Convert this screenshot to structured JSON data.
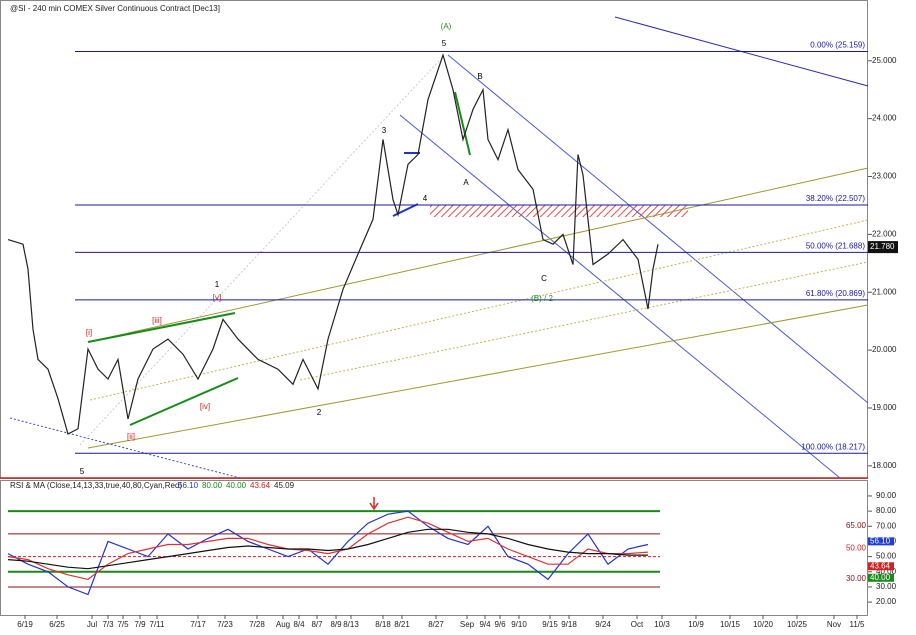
{
  "chart_data": [
    {
      "type": "line",
      "title": "@SI - 240 min  COMEX  Silver Continuous Contract [Dec13]",
      "x": [
        0,
        3,
        4,
        5,
        6,
        8,
        10,
        12,
        14,
        16,
        18,
        20,
        22,
        24,
        26,
        29,
        32,
        35,
        38,
        41,
        43,
        46,
        50,
        54,
        57,
        59,
        62,
        64,
        67,
        70,
        73,
        75,
        77,
        78,
        80,
        82,
        84,
        87,
        89,
        91,
        93,
        95,
        96,
        98,
        100,
        102,
        105,
        107,
        109,
        111,
        113,
        114,
        115,
        117,
        120,
        123,
        126,
        128,
        129,
        130
      ],
      "series": [
        {
          "color": "#222222",
          "values": [
            21.91,
            21.83,
            21.4,
            20.36,
            19.84,
            19.67,
            19.16,
            18.55,
            18.64,
            20.02,
            19.67,
            19.5,
            19.84,
            18.81,
            19.5,
            20.02,
            20.19,
            19.93,
            19.5,
            20.02,
            20.53,
            20.19,
            19.84,
            19.67,
            19.41,
            19.84,
            19.33,
            20.19,
            21.05,
            21.66,
            22.26,
            23.64,
            22.6,
            22.34,
            23.21,
            23.38,
            24.33,
            25.1,
            24.5,
            23.64,
            24.16,
            24.5,
            23.64,
            23.29,
            23.81,
            23.12,
            22.78,
            21.91,
            21.83,
            22.0,
            21.48,
            23.38,
            23.03,
            21.48,
            21.66,
            21.91,
            21.57,
            20.71,
            21.4,
            21.83
          ]
        }
      ],
      "xlim": [
        0,
        172
      ],
      "ylim": [
        17.79,
        26.05
      ],
      "yticks": [
        {
          "value": 18,
          "label": "18.000"
        },
        {
          "value": 19,
          "label": "19.000"
        },
        {
          "value": 20,
          "label": "20.000"
        },
        {
          "value": 21,
          "label": "21.000"
        },
        {
          "value": 22,
          "label": "22.000"
        },
        {
          "value": 23,
          "label": "23.000"
        },
        {
          "value": 24,
          "label": "24.000"
        },
        {
          "value": 25,
          "label": "25.000"
        }
      ],
      "xticks": [
        {
          "value": 3.4,
          "label": "6/19"
        },
        {
          "value": 9.8,
          "label": "6/25"
        },
        {
          "value": 16.8,
          "label": "Jul"
        },
        {
          "value": 20,
          "label": "7/3"
        },
        {
          "value": 23,
          "label": "7/5"
        },
        {
          "value": 26.4,
          "label": "7/9"
        },
        {
          "value": 29.8,
          "label": "7/11"
        },
        {
          "value": 38,
          "label": "7/17"
        },
        {
          "value": 43.4,
          "label": "7/23"
        },
        {
          "value": 49.8,
          "label": "7/28"
        },
        {
          "value": 55,
          "label": "Aug"
        },
        {
          "value": 58.2,
          "label": "8/4"
        },
        {
          "value": 61.8,
          "label": "8/7"
        },
        {
          "value": 65.6,
          "label": "8/9"
        },
        {
          "value": 68.6,
          "label": "8/13"
        },
        {
          "value": 75,
          "label": "8/18"
        },
        {
          "value": 78.8,
          "label": "8/21"
        },
        {
          "value": 85.6,
          "label": "8/27"
        },
        {
          "value": 91.8,
          "label": "Sep"
        },
        {
          "value": 95.4,
          "label": "9/4"
        },
        {
          "value": 98.4,
          "label": "9/6"
        },
        {
          "value": 102.2,
          "label": "9/10"
        },
        {
          "value": 108.4,
          "label": "9/15"
        },
        {
          "value": 112.2,
          "label": "9/18"
        },
        {
          "value": 119,
          "label": "9/24"
        },
        {
          "value": 125.8,
          "label": "Oct"
        },
        {
          "value": 130.8,
          "label": "10/3"
        },
        {
          "value": 137.6,
          "label": "10/9"
        },
        {
          "value": 144.4,
          "label": "10/15"
        },
        {
          "value": 151,
          "label": "10/20"
        },
        {
          "value": 157.8,
          "label": "10/25"
        },
        {
          "value": 165.2,
          "label": "Nov"
        },
        {
          "value": 169.8,
          "label": "11/5"
        }
      ],
      "fib_levels": [
        {
          "value": 25.159,
          "label": "0.00% (25.159)"
        },
        {
          "value": 22.507,
          "label": "38.20% (22.507)"
        },
        {
          "value": 21.688,
          "label": "50.00% (21.688)"
        },
        {
          "value": 20.869,
          "label": "61.80% (20.869)"
        },
        {
          "value": 18.217,
          "label": "100.00% (18.217)"
        }
      ],
      "fib_color": "#1a1a9a",
      "last_price": {
        "value": 21.78,
        "label": "21.780"
      },
      "annotations": [
        {
          "text": "(A)",
          "color": "#2a8a2a"
        },
        {
          "text": "5",
          "color": "#000000"
        },
        {
          "text": "B",
          "color": "#000000"
        },
        {
          "text": "3",
          "color": "#000000"
        },
        {
          "text": "A",
          "color": "#000000"
        },
        {
          "text": "4",
          "color": "#000000"
        },
        {
          "text": "C",
          "color": "#000000"
        },
        {
          "text": "(B) / 2",
          "color": "#2a8a2a"
        },
        {
          "text": "1",
          "color": "#000000"
        },
        {
          "text": "[v]",
          "color": "#cc2222"
        },
        {
          "text": "[i]",
          "color": "#cc2222"
        },
        {
          "text": "[iii]",
          "color": "#cc2222"
        },
        {
          "text": "[iv]",
          "color": "#cc2222"
        },
        {
          "text": "[ii]",
          "color": "#cc2222"
        },
        {
          "text": "2",
          "color": "#000000"
        },
        {
          "text": "5",
          "color": "#000000"
        }
      ]
    },
    {
      "type": "line",
      "title": "RSI & MA (Close,14,13,33,true,40,80,Cyan,Red)",
      "header_values": [
        {
          "value": 56.1,
          "label": "56.10",
          "color": "#1f3fd0"
        },
        {
          "value": 80,
          "label": "80.00",
          "color": "#1a8a1a"
        },
        {
          "value": 40,
          "label": "40.00",
          "color": "#1a8a1a"
        },
        {
          "value": 43.64,
          "label": "43.64",
          "color": "#d02020"
        },
        {
          "value": 45.09,
          "label": "45.09",
          "color": "#222222"
        }
      ],
      "x": [
        0,
        4,
        8,
        12,
        16,
        20,
        24,
        28,
        32,
        36,
        40,
        44,
        48,
        52,
        56,
        60,
        64,
        68,
        72,
        76,
        80,
        84,
        88,
        92,
        96,
        100,
        104,
        108,
        112,
        116,
        120,
        124,
        128
      ],
      "series": [
        {
          "color": "#2233cc",
          "values": [
            52,
            45,
            40,
            30,
            25,
            60,
            55,
            50,
            65,
            55,
            62,
            68,
            60,
            55,
            50,
            55,
            45,
            60,
            72,
            78,
            80,
            70,
            62,
            58,
            70,
            50,
            45,
            35,
            52,
            65,
            45,
            55,
            58
          ]
        },
        {
          "color": "#dd3333",
          "values": [
            50,
            48,
            42,
            38,
            35,
            45,
            52,
            55,
            58,
            58,
            60,
            62,
            62,
            58,
            55,
            54,
            52,
            55,
            65,
            72,
            76,
            72,
            66,
            60,
            62,
            55,
            50,
            45,
            45,
            55,
            52,
            52,
            53
          ]
        },
        {
          "color": "#111111",
          "values": [
            48,
            47,
            45,
            43,
            42,
            44,
            46,
            48,
            50,
            52,
            54,
            56,
            57,
            56,
            55,
            55,
            54,
            55,
            58,
            62,
            66,
            68,
            68,
            66,
            65,
            62,
            58,
            55,
            53,
            52,
            52,
            51,
            51
          ]
        }
      ],
      "xlim": [
        0,
        172
      ],
      "ylim": [
        11.5,
        99.2
      ],
      "yticks": [
        {
          "value": 20,
          "label": "20.00"
        },
        {
          "value": 30,
          "label": "30.00"
        },
        {
          "value": 40,
          "label": "40.00"
        },
        {
          "value": 50,
          "label": "50.00"
        },
        {
          "value": 60,
          "label": "60.00"
        },
        {
          "value": 70,
          "label": "70.00"
        },
        {
          "value": 80,
          "label": "80.00"
        },
        {
          "value": 90,
          "label": "90.00"
        }
      ],
      "levels": [
        {
          "value": 80,
          "label": "80.00",
          "color": "#1a8a1a"
        },
        {
          "value": 65,
          "label": "65.00",
          "color": "#8a1010"
        },
        {
          "value": 50,
          "label": "50.00",
          "color": "#cc2020"
        },
        {
          "value": 40,
          "label": "40.00",
          "color": "#1a8a1a"
        },
        {
          "value": 30,
          "label": "30.00",
          "color": "#8a1010"
        }
      ]
    }
  ]
}
